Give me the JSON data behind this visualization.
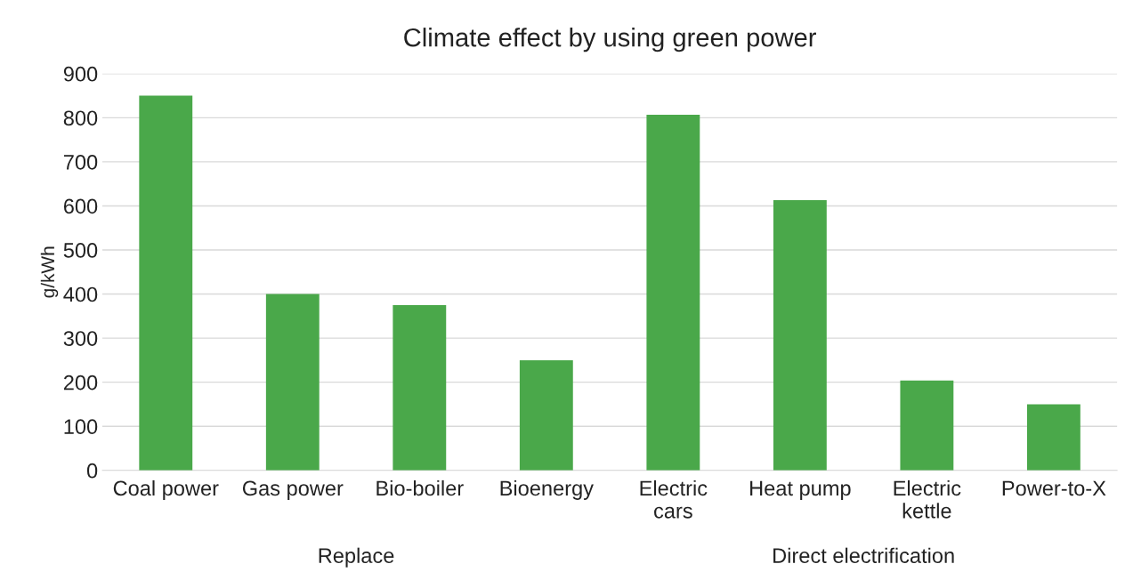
{
  "chart_data": {
    "type": "bar",
    "title": "Climate effect by using green power",
    "ylabel": "g/kWh",
    "categories": [
      "Coal power",
      "Gas power",
      "Bio-boiler",
      "Bioenergy",
      "Electric\ncars",
      "Heat pump",
      "Electric\nkettle",
      "Power-to-X"
    ],
    "values": [
      850,
      400,
      375,
      250,
      807,
      613,
      204,
      150
    ],
    "color": "#4aa84a",
    "ylim": [
      0,
      900
    ],
    "yticks": [
      0,
      100,
      200,
      300,
      400,
      500,
      600,
      700,
      800,
      900
    ],
    "grid": "y",
    "annotations": [
      "Replace",
      "Direct electrification"
    ]
  }
}
